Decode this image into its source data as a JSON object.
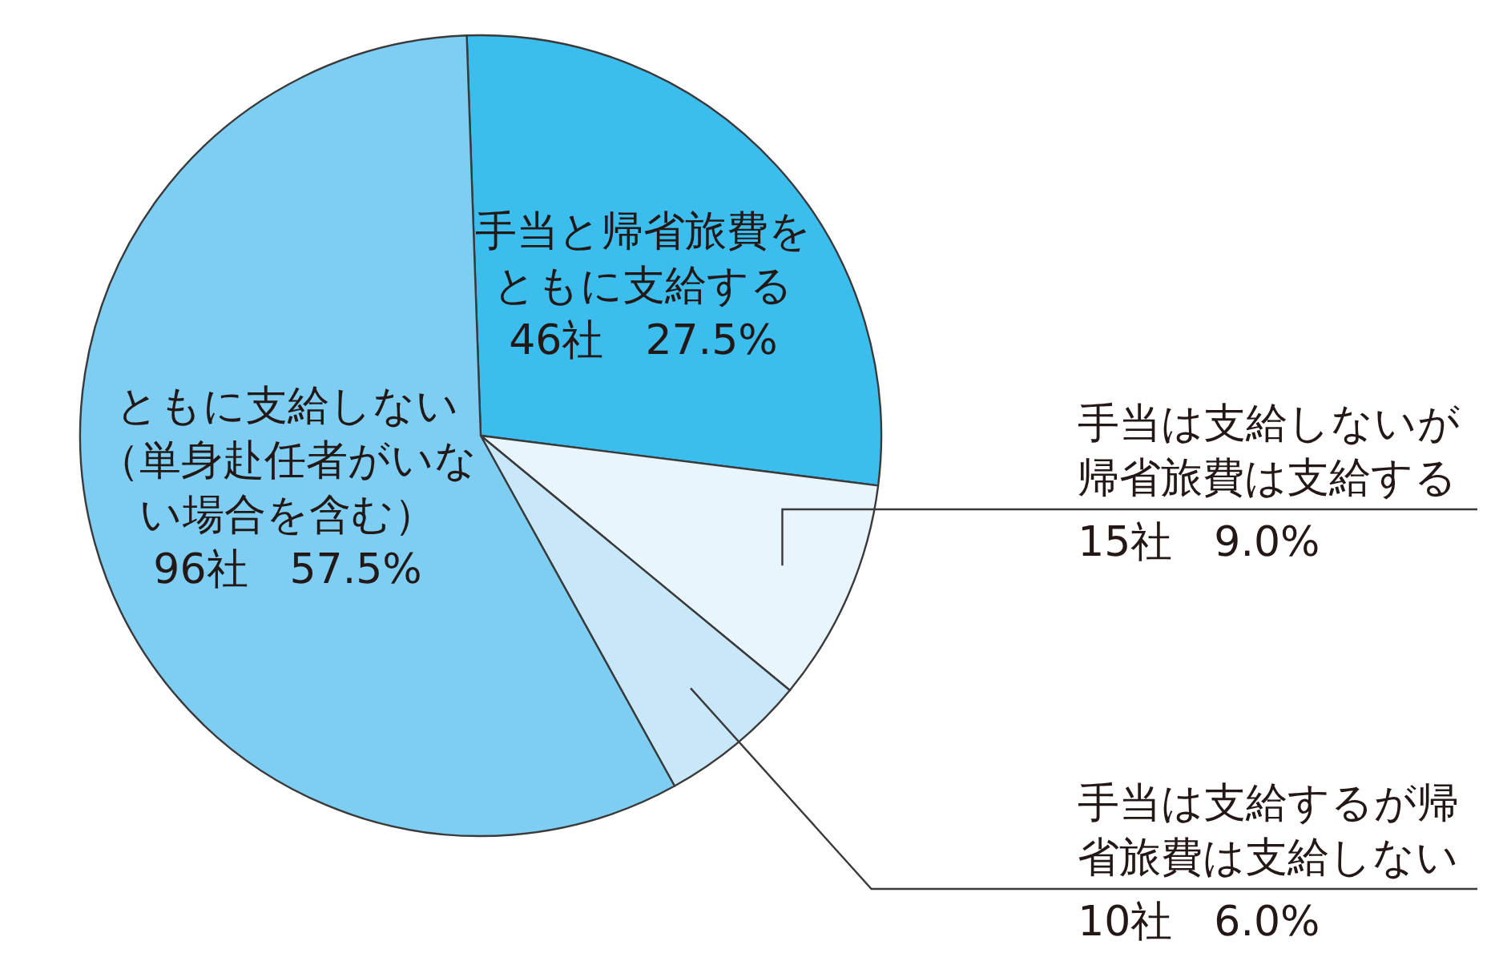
{
  "chart_data": {
    "type": "pie",
    "categories": [
      "手当と帰省旅費をともに支給する",
      "手当は支給しないが帰省旅費は支給する",
      "手当は支給するが帰省旅費は支給しない",
      "ともに支給しない（単身赴任者がいない場合を含む）"
    ],
    "values": [
      46,
      15,
      10,
      96
    ],
    "value_labels": [
      "46社　27.5%",
      "15社　9.0%",
      "10社　6.0%",
      "96社　57.5%"
    ],
    "colors": [
      "#3bbdee",
      "#e8f5fd",
      "#c8e7f9",
      "#7ecef4"
    ]
  }
}
